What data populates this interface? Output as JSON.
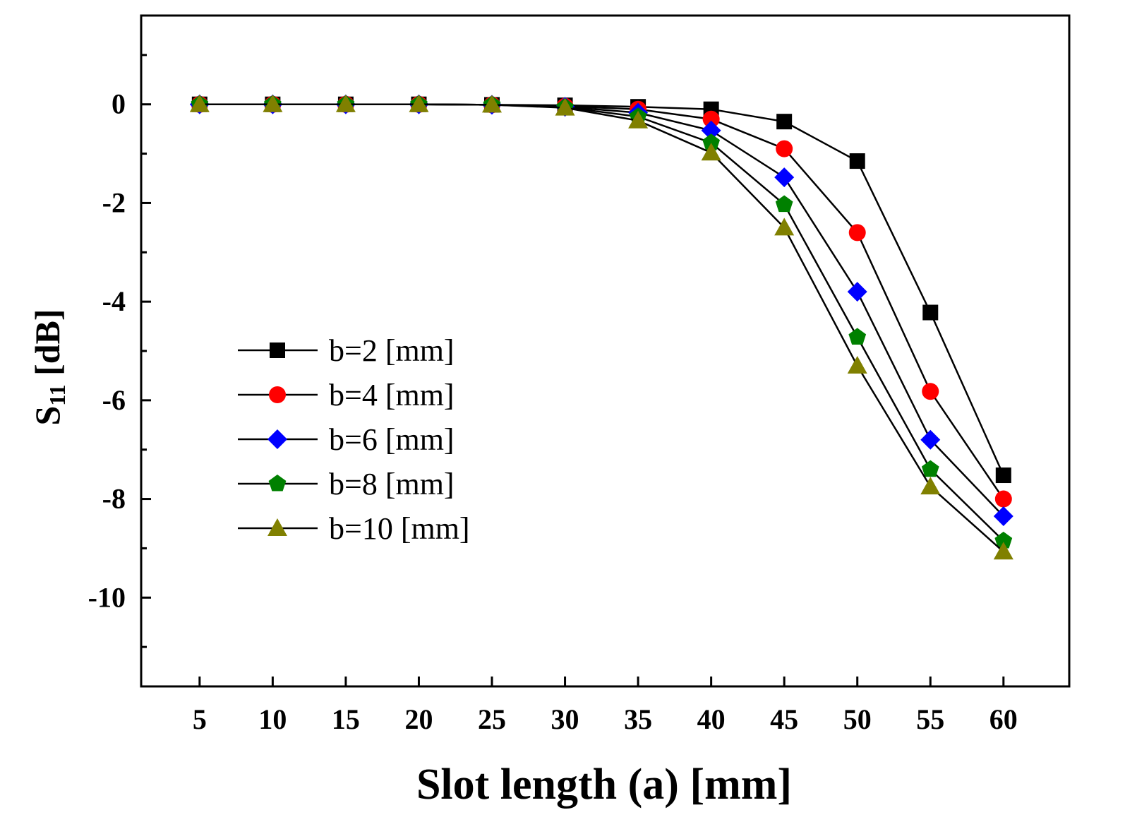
{
  "chart_data": {
    "type": "line",
    "xlabel": "Slot length (a) [mm]",
    "ylabel_main": "S",
    "ylabel_sub": "11",
    "ylabel_unit": " [dB]",
    "x": [
      5,
      10,
      15,
      20,
      25,
      30,
      35,
      40,
      45,
      50,
      55,
      60
    ],
    "xlim": [
      1,
      64.5
    ],
    "ylim": [
      -11.8,
      1.8
    ],
    "xticks": [
      "5",
      "10",
      "15",
      "20",
      "25",
      "30",
      "35",
      "40",
      "45",
      "50",
      "55",
      "60"
    ],
    "yticks": [
      {
        "value": 0,
        "label": "0"
      },
      {
        "value": -2,
        "label": "-2"
      },
      {
        "value": -4,
        "label": "-4"
      },
      {
        "value": -6,
        "label": "-6"
      },
      {
        "value": -8,
        "label": "-8"
      },
      {
        "value": -10,
        "label": "-10"
      }
    ],
    "grid": false,
    "legend_position": "left-center",
    "series": [
      {
        "name": "b=2 [mm]",
        "marker": "square",
        "color": "#000000",
        "values": [
          0,
          0,
          0,
          0,
          -0.01,
          -0.02,
          -0.05,
          -0.1,
          -0.35,
          -1.15,
          -4.22,
          -7.52
        ]
      },
      {
        "name": "b=4 [mm]",
        "marker": "circle",
        "color": "#ff0000",
        "values": [
          0,
          0,
          0,
          0,
          -0.01,
          -0.04,
          -0.1,
          -0.3,
          -0.9,
          -2.6,
          -5.82,
          -8.0
        ]
      },
      {
        "name": "b=6 [mm]",
        "marker": "diamond",
        "color": "#0000ff",
        "values": [
          0,
          0,
          0,
          0,
          -0.01,
          -0.05,
          -0.17,
          -0.53,
          -1.48,
          -3.8,
          -6.8,
          -8.35
        ]
      },
      {
        "name": "b=8 [mm]",
        "marker": "pentagon",
        "color": "#008000",
        "values": [
          0,
          0,
          0,
          0,
          -0.01,
          -0.06,
          -0.25,
          -0.78,
          -2.03,
          -4.72,
          -7.4,
          -8.85
        ]
      },
      {
        "name": "b=10 [mm]",
        "marker": "triangle",
        "color": "#808000",
        "values": [
          0,
          0,
          0,
          0,
          -0.01,
          -0.07,
          -0.33,
          -0.98,
          -2.5,
          -5.3,
          -7.75,
          -9.07
        ]
      }
    ]
  }
}
